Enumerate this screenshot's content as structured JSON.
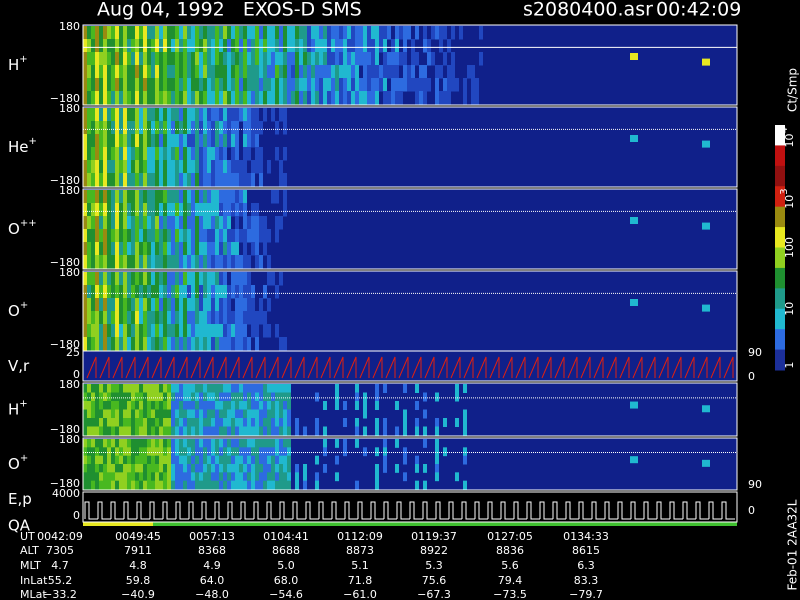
{
  "header": {
    "title": "Aug 04, 1992   EXOS-D SMS",
    "file": "s2080400.asr",
    "time": "00:42:09"
  },
  "panels": [
    {
      "label": {
        "base": "H",
        "sup": "+"
      },
      "ticks": [
        "180",
        "−180"
      ]
    },
    {
      "label": {
        "base": "He",
        "sup": "+"
      },
      "ticks": [
        "180",
        "−180"
      ]
    },
    {
      "label": {
        "base": "O",
        "sup": "++"
      },
      "ticks": [
        "180",
        "−180"
      ]
    },
    {
      "label": {
        "base": "O",
        "sup": "+"
      },
      "ticks": [
        "180",
        "−180"
      ]
    },
    {
      "label": {
        "base": "V,r"
      },
      "ticks": [
        "25",
        "0"
      ],
      "right_ticks": [
        "90",
        "0"
      ]
    },
    {
      "label": {
        "base": "H",
        "sup": "+"
      },
      "ticks": [
        "180",
        "−180"
      ]
    },
    {
      "label": {
        "base": "O",
        "sup": "+"
      },
      "ticks": [
        "180",
        "−180"
      ],
      "right_ticks": [
        "90"
      ]
    },
    {
      "label": {
        "base": "E,p",
        "second": "QA"
      },
      "ticks": [
        "4000",
        "0"
      ],
      "right_ticks": [
        "0"
      ]
    }
  ],
  "colorbar": {
    "unit": "Ct/Smp",
    "ticks": [
      {
        "base": "10",
        "sup": "4"
      },
      {
        "base": "10",
        "sup": "3"
      },
      {
        "base": "100"
      },
      {
        "base": "10"
      },
      {
        "base": "1"
      }
    ]
  },
  "table": {
    "rows": [
      {
        "label": "UT",
        "cells": [
          "0042:09",
          "0049:45",
          "0057:13",
          "0104:41",
          "0112:09",
          "0119:37",
          "0127:05",
          "0134:33"
        ]
      },
      {
        "label": "ALT",
        "cells": [
          "7305",
          "7911",
          "8368",
          "8688",
          "8873",
          "8922",
          "8836",
          "8615"
        ]
      },
      {
        "label": "MLT",
        "cells": [
          "4.7",
          "4.8",
          "4.9",
          "5.0",
          "5.1",
          "5.3",
          "5.6",
          "6.3"
        ]
      },
      {
        "label": "InLat",
        "cells": [
          "55.2",
          "59.8",
          "64.0",
          "68.0",
          "71.8",
          "75.6",
          "79.4",
          "83.3"
        ]
      },
      {
        "label": "MLat",
        "cells": [
          "−33.2",
          "−40.9",
          "−48.0",
          "−54.6",
          "−61.0",
          "−67.3",
          "−73.5",
          "−79.7"
        ]
      }
    ]
  },
  "footer": {
    "side": "Feb-01 2AA32L"
  }
}
